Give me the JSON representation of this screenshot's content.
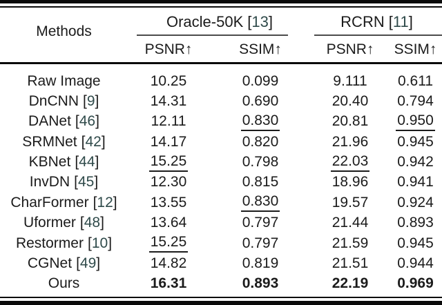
{
  "figure": {
    "kind": "benchmark-results-table",
    "background": "#ffffff"
  },
  "colors": {
    "text": "#1b1b1b",
    "citation": "#2f4a4a",
    "rule": "#0a0a0a",
    "cmidrule": "#4a4a4a"
  },
  "table": {
    "methods_header": "Methods",
    "bracket_open": "[",
    "bracket_close": "]",
    "groups": [
      {
        "name": "Oracle-50K",
        "cite": "13"
      },
      {
        "name": "RCRN",
        "cite": "11"
      }
    ],
    "sub_headers": [
      "PSNR↑",
      "SSIM↑",
      "PSNR↑",
      "SSIM↑"
    ],
    "rows": [
      {
        "method": "Raw Image",
        "cite": "",
        "values": [
          {
            "t": "10.25"
          },
          {
            "t": "0.099"
          },
          {
            "t": "9.111"
          },
          {
            "t": "0.611"
          }
        ]
      },
      {
        "method": "DnCNN",
        "cite": "9",
        "values": [
          {
            "t": "14.31"
          },
          {
            "t": "0.690"
          },
          {
            "t": "20.40"
          },
          {
            "t": "0.794"
          }
        ]
      },
      {
        "method": "DANet",
        "cite": "46",
        "values": [
          {
            "t": "12.11"
          },
          {
            "t": "0.830",
            "u": true
          },
          {
            "t": "20.81"
          },
          {
            "t": "0.950",
            "u": true
          }
        ]
      },
      {
        "method": "SRMNet",
        "cite": "42",
        "values": [
          {
            "t": "14.17"
          },
          {
            "t": "0.820"
          },
          {
            "t": "21.96"
          },
          {
            "t": "0.945"
          }
        ]
      },
      {
        "method": "KBNet",
        "cite": "44",
        "values": [
          {
            "t": "15.25",
            "u": true
          },
          {
            "t": "0.798"
          },
          {
            "t": "22.03",
            "u": true
          },
          {
            "t": "0.942"
          }
        ]
      },
      {
        "method": "InvDN",
        "cite": "45",
        "values": [
          {
            "t": "12.30"
          },
          {
            "t": "0.815"
          },
          {
            "t": "18.96"
          },
          {
            "t": "0.941"
          }
        ]
      },
      {
        "method": "CharFormer",
        "cite": "12",
        "values": [
          {
            "t": "13.55"
          },
          {
            "t": "0.830",
            "u": true
          },
          {
            "t": "19.57"
          },
          {
            "t": "0.924"
          }
        ]
      },
      {
        "method": "Uformer",
        "cite": "48",
        "values": [
          {
            "t": "13.64"
          },
          {
            "t": "0.797"
          },
          {
            "t": "21.44"
          },
          {
            "t": "0.893"
          }
        ]
      },
      {
        "method": "Restormer",
        "cite": "10",
        "values": [
          {
            "t": "15.25",
            "u": true
          },
          {
            "t": "0.797"
          },
          {
            "t": "21.59"
          },
          {
            "t": "0.945"
          }
        ]
      },
      {
        "method": "CGNet",
        "cite": "49",
        "values": [
          {
            "t": "14.82"
          },
          {
            "t": "0.819"
          },
          {
            "t": "21.51"
          },
          {
            "t": "0.944"
          }
        ]
      },
      {
        "method": "Ours",
        "cite": "",
        "values": [
          {
            "t": "16.31",
            "b": true
          },
          {
            "t": "0.893",
            "b": true
          },
          {
            "t": "22.19",
            "b": true
          },
          {
            "t": "0.969",
            "b": true
          }
        ]
      }
    ]
  }
}
